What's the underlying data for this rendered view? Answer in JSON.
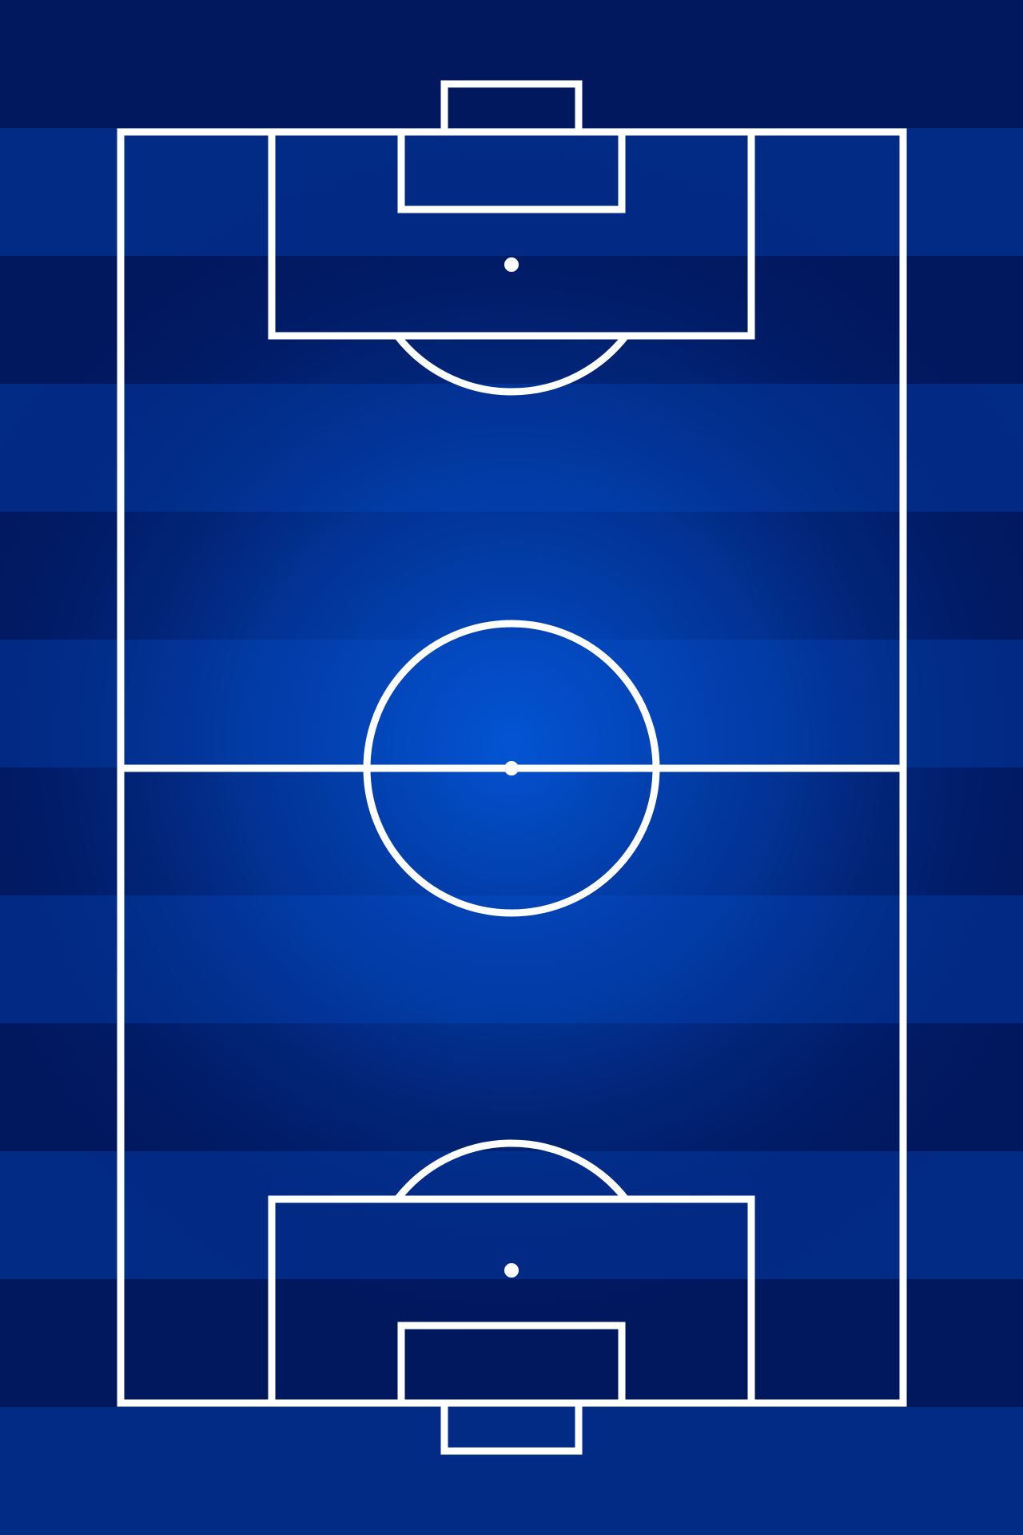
{
  "pitch": {
    "colors": {
      "line": "#ffffff",
      "stripe_dark": "#01185f",
      "stripe_light": "#022b86",
      "glow": "#034bc5"
    },
    "stripe_count": 12
  }
}
